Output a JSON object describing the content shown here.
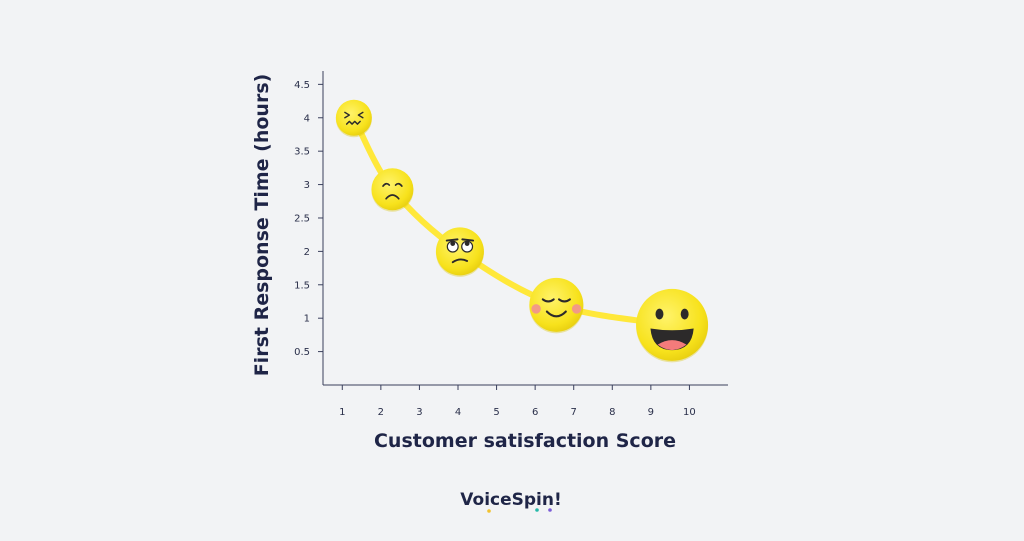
{
  "chart_data": {
    "type": "line",
    "title": "",
    "xlabel": "Customer satisfaction Score",
    "ylabel": "First Response Time (hours)",
    "x_ticks": [
      "1",
      "2",
      "3",
      "4",
      "5",
      "6",
      "7",
      "8",
      "9",
      "10"
    ],
    "y_ticks": [
      "0.5",
      "1",
      "1.5",
      "2",
      "2.5",
      "3",
      "3.5",
      "4",
      "4.5"
    ],
    "xlim": [
      0.5,
      11
    ],
    "ylim": [
      0,
      4.7
    ],
    "grid": false,
    "line_color": "#ffe83a",
    "points": [
      {
        "x": 1.3,
        "y": 4.0,
        "icon": "confounded-face-icon"
      },
      {
        "x": 2.3,
        "y": 2.93,
        "icon": "sad-face-icon"
      },
      {
        "x": 4.05,
        "y": 2.0,
        "icon": "eye-roll-face-icon"
      },
      {
        "x": 6.55,
        "y": 1.2,
        "icon": "content-smile-face-icon"
      },
      {
        "x": 9.55,
        "y": 0.9,
        "icon": "big-grin-face-icon"
      }
    ]
  },
  "brand": {
    "name": "VoiceSpin!",
    "dot_colors": [
      "#f2c230",
      "#25b8a8",
      "#7b5cd6"
    ]
  }
}
